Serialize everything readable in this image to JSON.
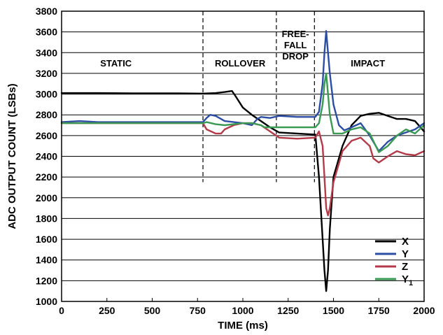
{
  "chart_data": {
    "type": "line",
    "xlabel": "TIME (ms)",
    "ylabel": "ADC OUTPUT COUNT (LSBs)",
    "xlim": [
      0,
      2000
    ],
    "ylim": [
      1000,
      3800
    ],
    "xticks": [
      0,
      250,
      500,
      750,
      1000,
      1250,
      1500,
      1750,
      2000
    ],
    "yticks": [
      1000,
      1200,
      1400,
      1600,
      1800,
      2000,
      2200,
      2400,
      2600,
      2800,
      3000,
      3200,
      3400,
      3600,
      3800
    ],
    "grid": "horizontal",
    "legend_position": "bottom-right",
    "phase_dividers": [
      {
        "x": 780,
        "y_from": 2150,
        "y_to": 3800
      },
      {
        "x": 1185,
        "y_from": 2150,
        "y_to": 3800
      },
      {
        "x": 1395,
        "y_from": 2150,
        "y_to": 3800
      }
    ],
    "phase_labels": [
      {
        "x": 300,
        "y": 3300,
        "lines": [
          "STATIC"
        ]
      },
      {
        "x": 985,
        "y": 3300,
        "lines": [
          "ROLLOVER"
        ]
      },
      {
        "x": 1290,
        "y": 3300,
        "lines": [
          "FREE-",
          "FALL",
          "DROP"
        ]
      },
      {
        "x": 1690,
        "y": 3300,
        "lines": [
          "IMPACT"
        ]
      }
    ],
    "series": [
      {
        "name": "X",
        "subscript": "",
        "color": "#000000",
        "x": [
          0,
          200,
          400,
          600,
          780,
          850,
          900,
          940,
          960,
          1000,
          1050,
          1100,
          1150,
          1200,
          1300,
          1400,
          1420,
          1440,
          1450,
          1460,
          1470,
          1480,
          1500,
          1550,
          1600,
          1650,
          1700,
          1750,
          1800,
          1850,
          1900,
          1950,
          2000
        ],
        "y": [
          3010,
          3010,
          3008,
          3008,
          3005,
          3010,
          3020,
          3030,
          2980,
          2870,
          2800,
          2740,
          2680,
          2630,
          2620,
          2610,
          2200,
          1600,
          1300,
          1100,
          1300,
          1700,
          2200,
          2500,
          2700,
          2790,
          2810,
          2820,
          2790,
          2760,
          2760,
          2740,
          2640
        ]
      },
      {
        "name": "Y",
        "subscript": "",
        "color": "#2b4da3",
        "x": [
          0,
          100,
          150,
          200,
          400,
          600,
          780,
          800,
          820,
          850,
          900,
          1000,
          1050,
          1080,
          1100,
          1150,
          1200,
          1300,
          1400,
          1420,
          1440,
          1450,
          1460,
          1470,
          1480,
          1500,
          1530,
          1560,
          1600,
          1650,
          1700,
          1750,
          1800,
          1850,
          1900,
          1950,
          2000
        ],
        "y": [
          2730,
          2740,
          2735,
          2730,
          2730,
          2730,
          2730,
          2770,
          2800,
          2790,
          2740,
          2720,
          2700,
          2760,
          2780,
          2770,
          2790,
          2780,
          2780,
          2830,
          3100,
          3400,
          3610,
          3400,
          3200,
          2900,
          2700,
          2650,
          2680,
          2720,
          2600,
          2450,
          2540,
          2600,
          2630,
          2660,
          2720
        ]
      },
      {
        "name": "Z",
        "subscript": "",
        "color": "#b33a48",
        "x": [
          0,
          200,
          400,
          600,
          780,
          800,
          850,
          880,
          900,
          950,
          1000,
          1050,
          1100,
          1150,
          1200,
          1300,
          1400,
          1420,
          1440,
          1450,
          1460,
          1470,
          1480,
          1500,
          1550,
          1600,
          1650,
          1700,
          1720,
          1750,
          1800,
          1850,
          1900,
          1950,
          2000
        ],
        "y": [
          2720,
          2720,
          2720,
          2720,
          2720,
          2660,
          2620,
          2620,
          2660,
          2700,
          2720,
          2720,
          2700,
          2640,
          2580,
          2570,
          2580,
          2640,
          2500,
          2200,
          1900,
          1830,
          1900,
          2150,
          2450,
          2550,
          2580,
          2500,
          2380,
          2340,
          2400,
          2450,
          2420,
          2410,
          2450
        ]
      },
      {
        "name": "Y",
        "subscript": "1",
        "color": "#3a9a53",
        "x": [
          0,
          200,
          400,
          600,
          780,
          800,
          850,
          900,
          1000,
          1050,
          1100,
          1120,
          1150,
          1200,
          1300,
          1400,
          1420,
          1440,
          1450,
          1460,
          1470,
          1480,
          1500,
          1550,
          1600,
          1650,
          1700,
          1750,
          1800,
          1850,
          1900,
          1950,
          2000
        ],
        "y": [
          2720,
          2720,
          2720,
          2720,
          2720,
          2730,
          2710,
          2700,
          2720,
          2720,
          2700,
          2680,
          2680,
          2680,
          2680,
          2680,
          2720,
          2900,
          3100,
          3200,
          3000,
          2800,
          2620,
          2620,
          2660,
          2680,
          2620,
          2440,
          2500,
          2600,
          2660,
          2620,
          2700
        ]
      }
    ]
  }
}
